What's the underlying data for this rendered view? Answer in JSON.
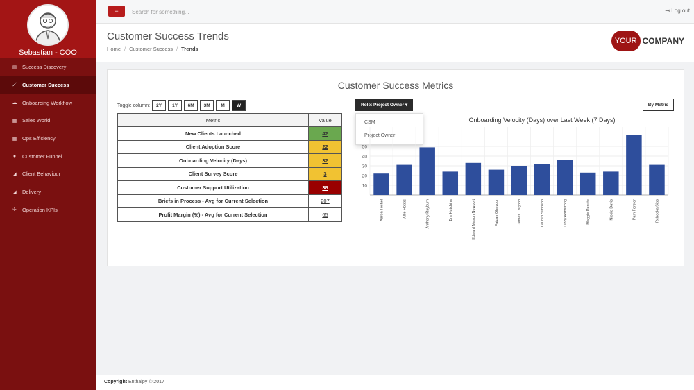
{
  "sidebar": {
    "profile_name": "Sebastian - COO",
    "items": [
      {
        "label": "Success Discovery",
        "icon": "chart-icon"
      },
      {
        "label": "Customer Success",
        "icon": "line-chart-icon"
      },
      {
        "label": "Onboarding Workflow",
        "icon": "cloud-icon"
      },
      {
        "label": "Sales World",
        "icon": "grid-icon"
      },
      {
        "label": "Ops Efficiency",
        "icon": "grid-icon"
      },
      {
        "label": "Customer Funnel",
        "icon": "globe-icon"
      },
      {
        "label": "Client Behaviour",
        "icon": "area-chart-icon"
      },
      {
        "label": "Delivery",
        "icon": "area-chart-icon"
      },
      {
        "label": "Operation KPIs",
        "icon": "plane-icon"
      }
    ]
  },
  "topbar": {
    "search_placeholder": "Search for something...",
    "logout_label": "Log out"
  },
  "header": {
    "title": "Customer Success Trends",
    "breadcrumb": [
      "Home",
      "Customer Success",
      "Trends"
    ],
    "logo_left": "YOUR",
    "logo_right": "COMPANY"
  },
  "panel": {
    "title": "Customer Success Metrics",
    "toggle_label": "Toggle column:",
    "toggle_buttons": [
      "2Y",
      "1Y",
      "6M",
      "3M",
      "M",
      "W"
    ],
    "role_button": "Role: Project Owner ▾",
    "role_options": [
      "CSM",
      "Project Owner"
    ],
    "metric_button": "By Metric"
  },
  "table": {
    "headers": [
      "Metric",
      "Value"
    ],
    "rows": [
      {
        "metric": "New Clients Launched",
        "value": "42",
        "color": "#6aa84f"
      },
      {
        "metric": "Client Adoption Score",
        "value": "22",
        "color": "#f1c232"
      },
      {
        "metric": "Onboarding Velocity (Days)",
        "value": "32",
        "color": "#f1c232"
      },
      {
        "metric": "Client Survey Score",
        "value": "3",
        "color": "#f1c232"
      },
      {
        "metric": "Customer Support Utilization",
        "value": "38",
        "color": "#990000"
      },
      {
        "metric": "Briefs in Process - Avg for Current Selection",
        "value": "207",
        "color": "#ffffff"
      },
      {
        "metric": "Profit Margin (%) - Avg for Current Selection",
        "value": "65",
        "color": "#ffffff"
      }
    ]
  },
  "chart_data": {
    "type": "bar",
    "title": "Onboarding Velocity (Days) over Last Week (7 Days)",
    "categories": [
      "Aaron Tochel",
      "Allie Hobbs",
      "Anthony Rayburn",
      "Bre Hutchins",
      "Edward Mason Newport",
      "Faizan Ghayour",
      "James Osgood",
      "Lauren Simpson",
      "Libby Armstrong",
      "Maggie Pesute",
      "Nicole Davis",
      "Pam Forster",
      "Rebecka Sips"
    ],
    "values": [
      22,
      31,
      49,
      24,
      33,
      26,
      30,
      32,
      36,
      23,
      24,
      62,
      31
    ],
    "ylim": [
      0,
      70
    ],
    "yticks": [
      10,
      20,
      30,
      40,
      50
    ],
    "color": "#2e4e9c",
    "grid": true
  },
  "footer": {
    "copyright_label": "Copyright",
    "copyright_text": "Enthalpy © 2017"
  },
  "colors": {
    "sidebar": "#7a1010",
    "sidebar_header": "#a31515",
    "accent": "#b71c1c"
  }
}
